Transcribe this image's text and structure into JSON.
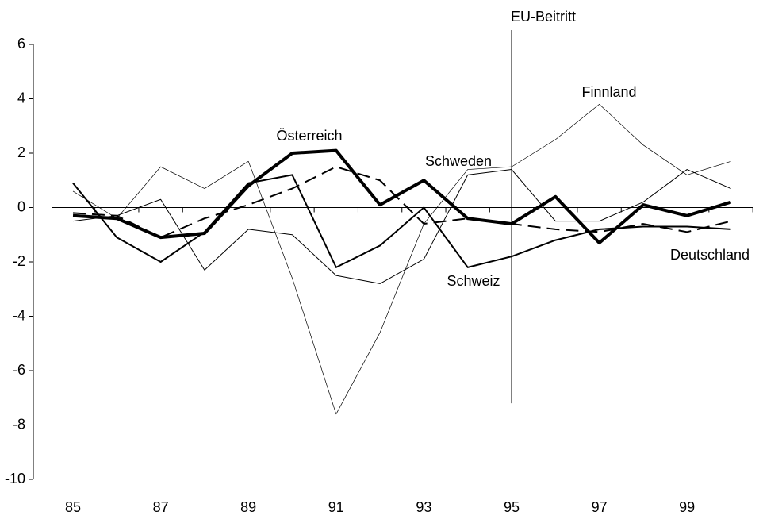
{
  "chart_data": {
    "type": "line",
    "x": [
      85,
      86,
      87,
      88,
      89,
      90,
      91,
      92,
      93,
      94,
      95,
      96,
      97,
      98,
      99,
      100
    ],
    "xlim": [
      85,
      100.5
    ],
    "xticks": [
      85,
      87,
      89,
      91,
      93,
      95,
      97,
      99
    ],
    "ylim": [
      -10,
      6
    ],
    "yticks": [
      -10,
      -8,
      -6,
      -4,
      -2,
      0,
      2,
      4,
      6
    ],
    "series": [
      {
        "name": "Österreich",
        "color": "#000000",
        "values": [
          -0.3,
          -0.4,
          -1.1,
          -0.95,
          0.8,
          2.0,
          2.1,
          0.1,
          1.0,
          -0.4,
          -0.6,
          0.4,
          -1.3,
          0.1,
          -0.3,
          0.2
        ]
      },
      {
        "name": "Deutschland",
        "color": "#000000",
        "values": [
          -0.2,
          -0.3,
          -1.1,
          -0.4,
          0.1,
          0.7,
          1.5,
          1.0,
          -0.6,
          -0.4,
          -0.6,
          -0.8,
          -0.9,
          -0.6,
          -0.9,
          -0.5
        ]
      },
      {
        "name": "Schweiz",
        "color": "#000000",
        "values": [
          0.9,
          -1.1,
          -2.0,
          -0.9,
          0.9,
          1.2,
          -2.2,
          -1.4,
          0.0,
          -2.2,
          -1.8,
          -1.2,
          -0.8,
          -0.7,
          -0.7,
          -0.8
        ]
      },
      {
        "name": "Schweden",
        "color": "#000000",
        "values": [
          -0.5,
          -0.3,
          0.3,
          -2.3,
          -0.8,
          -1.0,
          -2.5,
          -2.8,
          -1.9,
          1.2,
          1.4,
          -0.5,
          -0.5,
          0.2,
          1.4,
          0.7
        ]
      },
      {
        "name": "Finnland",
        "color": "#000000",
        "values": [
          0.6,
          -0.4,
          1.5,
          0.7,
          1.7,
          -2.6,
          -7.6,
          -4.6,
          -0.6,
          1.4,
          1.5,
          2.5,
          3.8,
          2.3,
          1.2,
          1.7
        ]
      }
    ],
    "annotation": {
      "text": "EU-Beitritt",
      "x": 95
    }
  }
}
